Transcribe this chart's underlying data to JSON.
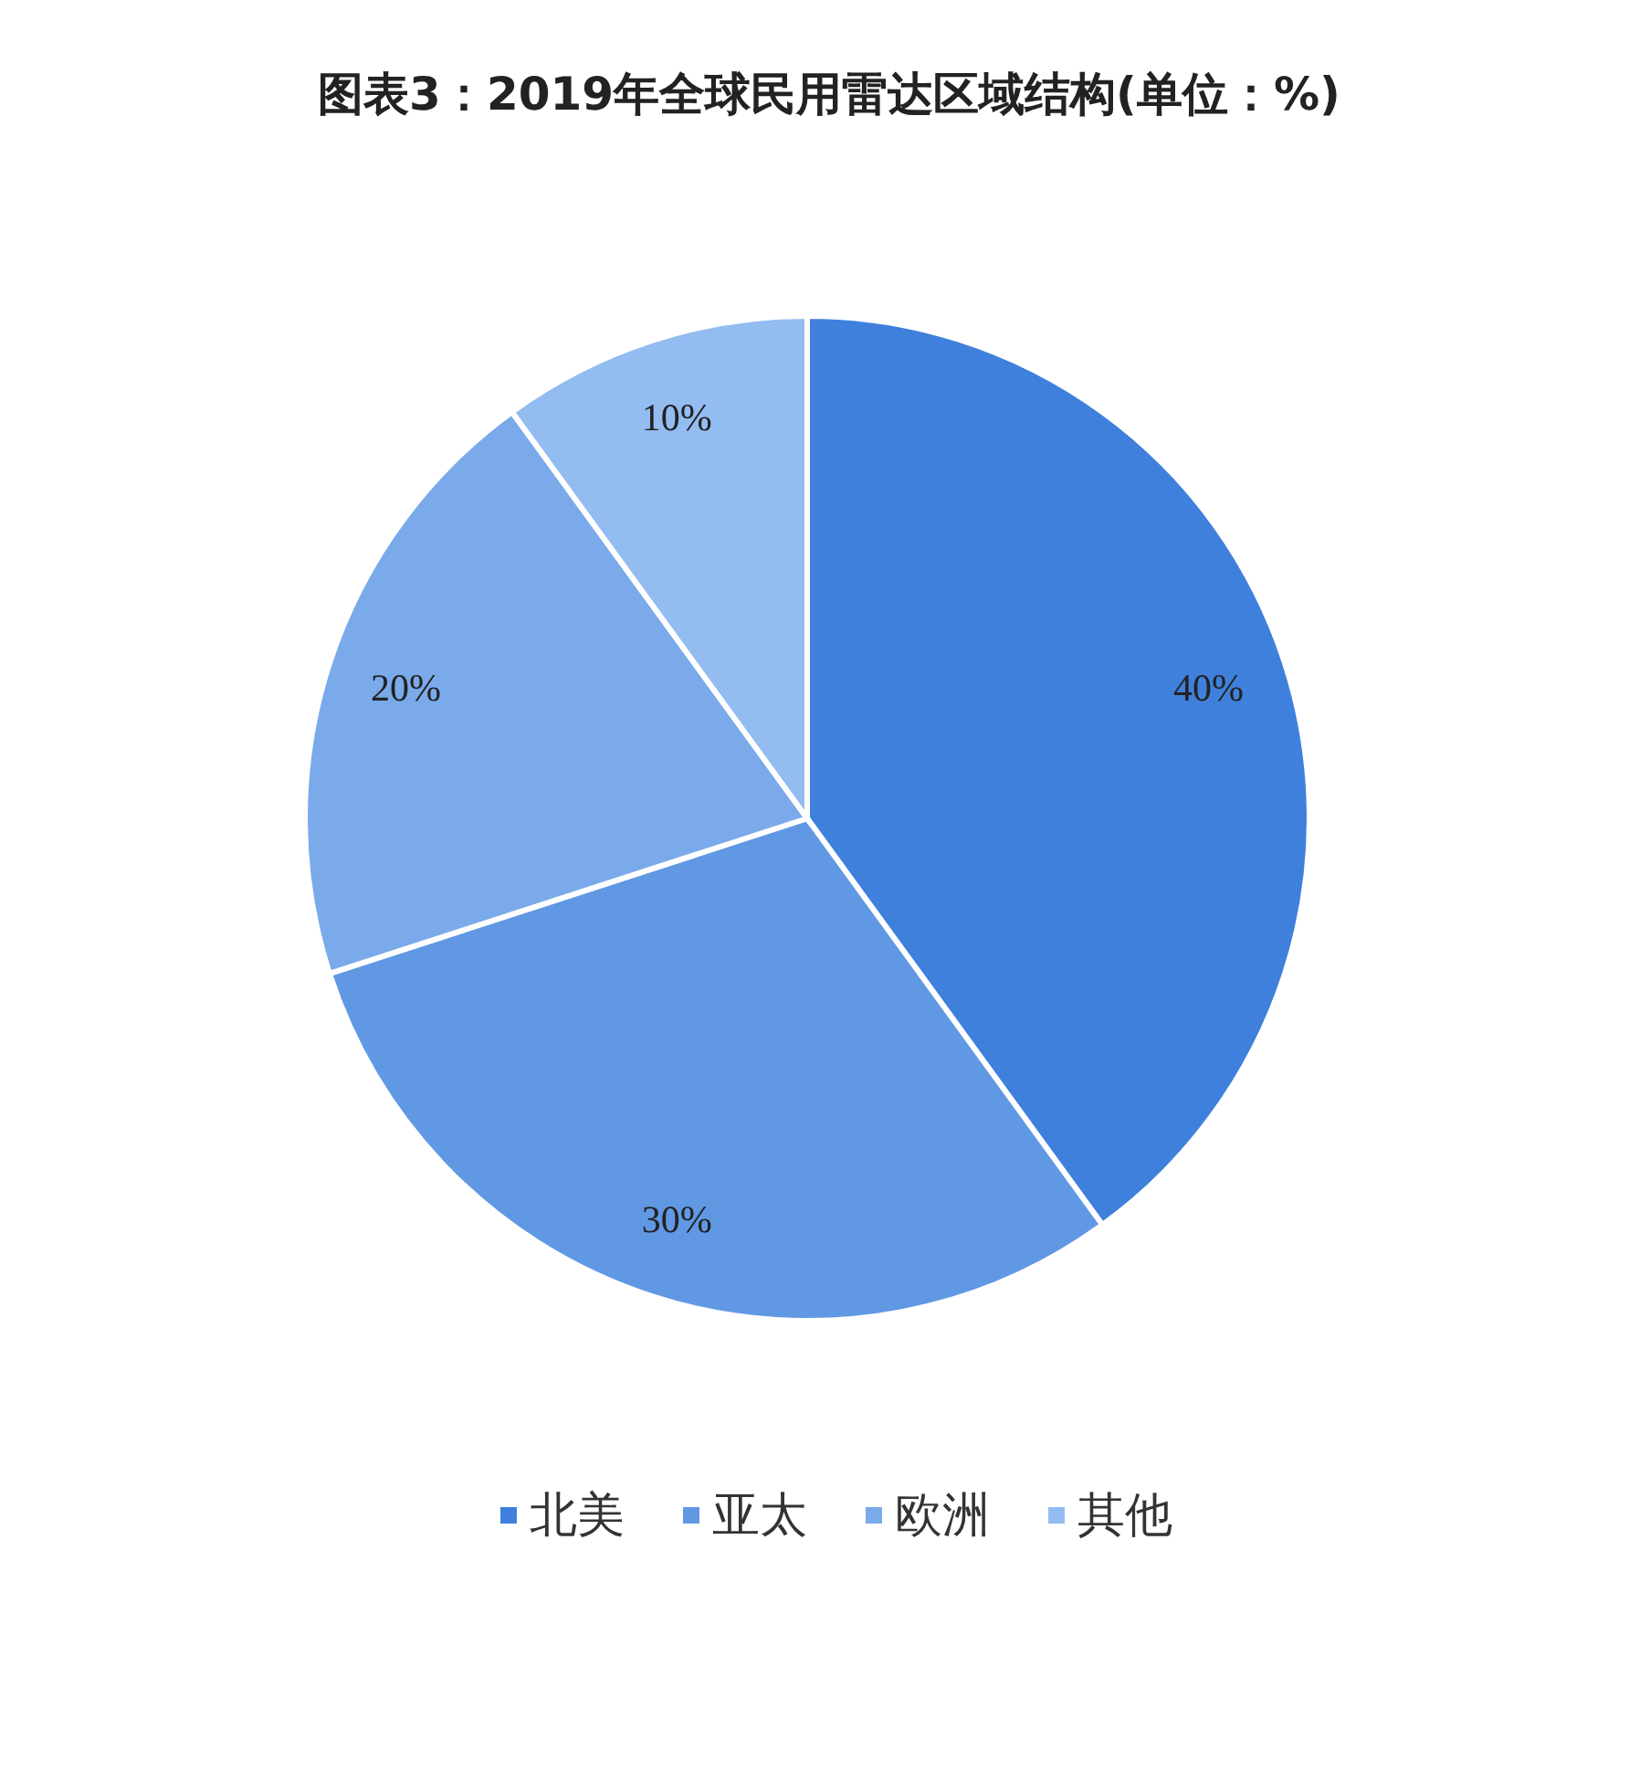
{
  "chart_data": {
    "type": "pie",
    "title": "图表3：2019年全球民用雷达区域结构(单位：%)",
    "categories": [
      "北美",
      "亚太",
      "欧洲",
      "其他"
    ],
    "values": [
      40,
      30,
      20,
      10
    ],
    "colors": [
      "#3f80dd",
      "#6198e4",
      "#7aaaea",
      "#93bcf0"
    ],
    "value_labels": [
      "40%",
      "30%",
      "20%",
      "10%"
    ],
    "legend": "bottom"
  }
}
